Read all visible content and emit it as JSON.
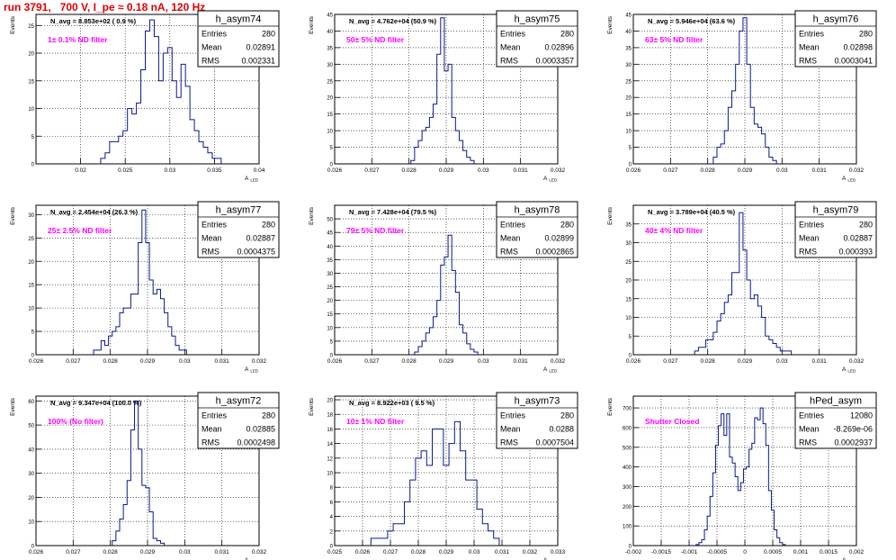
{
  "page": {
    "title": "run 3791,   700 V, I_pe ≈ 0.18 nA, 120 Hz"
  },
  "style": {
    "line_color": "#0a1a8c",
    "label_color": "#ff00ff",
    "title_color": "#e00000",
    "grid": true
  },
  "chart_data": [
    {
      "type": "histogram",
      "name": "h_asym74",
      "nlabel": "N_avg = 8.853e+02 ( 0.9 %)",
      "filter_label": "1± 0.1% ND filter",
      "stats": {
        "entries": "280",
        "mean": "0.02891",
        "rms": "0.002331"
      },
      "stats_labels": [
        "Entries",
        "Mean",
        "RMS"
      ],
      "ylabel": "Events",
      "xlabel": "A",
      "xsub": "LED",
      "xlim": [
        0.015,
        0.04
      ],
      "ylim": [
        0,
        27
      ],
      "xticks": [
        "0.02",
        "0.025",
        "0.03",
        "0.035",
        "0.04"
      ],
      "xtick_vals": [
        0.02,
        0.025,
        0.03,
        0.035,
        0.04
      ],
      "yticks": [
        0,
        5,
        10,
        15,
        20,
        25
      ],
      "bin_width": 0.0005,
      "x": [
        0.0225,
        0.023,
        0.0235,
        0.024,
        0.0245,
        0.025,
        0.0255,
        0.026,
        0.0265,
        0.027,
        0.0275,
        0.028,
        0.0285,
        0.029,
        0.0295,
        0.03,
        0.0305,
        0.031,
        0.0315,
        0.032,
        0.0325,
        0.033,
        0.0335,
        0.034,
        0.0345,
        0.035,
        0.0355
      ],
      "values": [
        1,
        2,
        4,
        4,
        5,
        6,
        10,
        9,
        11,
        17,
        24,
        26,
        23,
        15,
        20,
        21,
        15,
        12,
        18,
        14,
        8,
        6,
        4,
        3,
        2,
        1,
        1
      ]
    },
    {
      "type": "histogram",
      "name": "h_asym75",
      "nlabel": "N_avg = 4.762e+04 (50.9 %)",
      "filter_label": "50± 5% ND filter",
      "stats": {
        "entries": "280",
        "mean": "0.02896",
        "rms": "0.0003357"
      },
      "stats_labels": [
        "Entries",
        "Mean",
        "RMS"
      ],
      "ylabel": "Events",
      "xlabel": "A",
      "xsub": "LED",
      "xlim": [
        0.026,
        0.032
      ],
      "ylim": [
        0,
        45
      ],
      "xticks": [
        "0.026",
        "0.027",
        "0.028",
        "0.029",
        "0.03",
        "0.031",
        "0.032"
      ],
      "xtick_vals": [
        0.026,
        0.027,
        0.028,
        0.029,
        0.03,
        0.031,
        0.032
      ],
      "yticks": [
        0,
        5,
        10,
        15,
        20,
        25,
        30,
        35,
        40,
        45
      ],
      "bin_width": 0.0001,
      "x": [
        0.0281,
        0.0282,
        0.0283,
        0.0284,
        0.0285,
        0.0286,
        0.0287,
        0.0288,
        0.0289,
        0.029,
        0.0291,
        0.0292,
        0.0293,
        0.0294,
        0.0295,
        0.0296,
        0.0297
      ],
      "values": [
        1,
        5,
        7,
        10,
        11,
        14,
        18,
        33,
        44,
        28,
        30,
        14,
        10,
        7,
        4,
        2,
        1
      ]
    },
    {
      "type": "histogram",
      "name": "h_asym76",
      "nlabel": "N_avg = 5.946e+04 (63.6 %)",
      "filter_label": "63± 5% ND filter",
      "stats": {
        "entries": "280",
        "mean": "0.02898",
        "rms": "0.0003041"
      },
      "stats_labels": [
        "Entries",
        "Mean",
        "RMS"
      ],
      "ylabel": "Events",
      "xlabel": "A",
      "xsub": "LED",
      "xlim": [
        0.026,
        0.032
      ],
      "ylim": [
        0,
        45
      ],
      "xticks": [
        "0.026",
        "0.027",
        "0.028",
        "0.029",
        "0.03",
        "0.031",
        "0.032"
      ],
      "xtick_vals": [
        0.026,
        0.027,
        0.028,
        0.029,
        0.03,
        0.031,
        0.032
      ],
      "yticks": [
        0,
        5,
        10,
        15,
        20,
        25,
        30,
        35,
        40,
        45
      ],
      "bin_width": 0.0001,
      "x": [
        0.0282,
        0.0283,
        0.0284,
        0.0285,
        0.0286,
        0.0287,
        0.0288,
        0.0289,
        0.029,
        0.0291,
        0.0292,
        0.0293,
        0.0294,
        0.0295,
        0.0296,
        0.0297,
        0.0298
      ],
      "values": [
        2,
        5,
        6,
        10,
        17,
        22,
        30,
        40,
        44,
        30,
        17,
        12,
        11,
        9,
        5,
        2,
        1
      ]
    },
    {
      "type": "histogram",
      "name": "h_asym77",
      "nlabel": "N_avg = 2.454e+04 (26.3 %)",
      "filter_label": "25± 2.5% ND filter",
      "stats": {
        "entries": "280",
        "mean": "0.02887",
        "rms": "0.0004375"
      },
      "stats_labels": [
        "Entries",
        "Mean",
        "RMS"
      ],
      "ylabel": "Events",
      "xlabel": "A",
      "xsub": "LED",
      "xlim": [
        0.026,
        0.032
      ],
      "ylim": [
        0,
        32
      ],
      "xticks": [
        "0.026",
        "0.027",
        "0.028",
        "0.029",
        "0.03",
        "0.031",
        "0.032"
      ],
      "xtick_vals": [
        0.026,
        0.027,
        0.028,
        0.029,
        0.03,
        0.031,
        0.032
      ],
      "yticks": [
        0,
        5,
        10,
        15,
        20,
        25,
        30
      ],
      "bin_width": 0.0001,
      "x": [
        0.0276,
        0.0277,
        0.0278,
        0.0279,
        0.028,
        0.0281,
        0.0282,
        0.0283,
        0.0284,
        0.0285,
        0.0286,
        0.0287,
        0.0288,
        0.0289,
        0.029,
        0.0291,
        0.0292,
        0.0293,
        0.0294,
        0.0295,
        0.0296,
        0.0297,
        0.0298,
        0.0299,
        0.03
      ],
      "values": [
        1,
        1,
        3,
        2,
        4,
        5,
        6,
        9,
        10,
        10,
        13,
        13,
        24,
        31,
        24,
        16,
        13,
        14,
        12,
        9,
        6,
        4,
        2,
        1,
        1
      ]
    },
    {
      "type": "histogram",
      "name": "h_asym78",
      "nlabel": "N_avg = 7.428e+04 (79.5 %)",
      "filter_label": "79± 5% ND filter",
      "stats": {
        "entries": "280",
        "mean": "0.02899",
        "rms": "0.0002865"
      },
      "stats_labels": [
        "Entries",
        "Mean",
        "RMS"
      ],
      "ylabel": "Events",
      "xlabel": "A",
      "xsub": "LED",
      "xlim": [
        0.026,
        0.032
      ],
      "ylim": [
        0,
        55
      ],
      "xticks": [
        "0.026",
        "0.027",
        "0.028",
        "0.029",
        "0.03",
        "0.031",
        "0.032"
      ],
      "xtick_vals": [
        0.026,
        0.027,
        0.028,
        0.029,
        0.03,
        0.031,
        0.032
      ],
      "yticks": [
        0,
        5,
        10,
        15,
        20,
        25,
        30,
        35,
        40,
        45,
        50
      ],
      "bin_width": 0.0001,
      "x": [
        0.0282,
        0.0283,
        0.0284,
        0.0285,
        0.0286,
        0.0287,
        0.0288,
        0.0289,
        0.029,
        0.0291,
        0.0292,
        0.0293,
        0.0294,
        0.0295,
        0.0296,
        0.0297,
        0.0298
      ],
      "values": [
        1,
        3,
        5,
        8,
        10,
        14,
        20,
        33,
        36,
        44,
        31,
        23,
        11,
        8,
        4,
        2,
        1
      ]
    },
    {
      "type": "histogram",
      "name": "h_asym79",
      "nlabel": "N_avg = 3.789e+04 (40.5 %)",
      "filter_label": "40± 4% ND filter",
      "stats": {
        "entries": "280",
        "mean": "0.02887",
        "rms": "0.000393"
      },
      "stats_labels": [
        "Entries",
        "Mean",
        "RMS"
      ],
      "ylabel": "Events",
      "xlabel": "A",
      "xsub": "LED",
      "xlim": [
        0.026,
        0.032
      ],
      "ylim": [
        0,
        40
      ],
      "xticks": [
        "0.026",
        "0.027",
        "0.028",
        "0.029",
        "0.03",
        "0.031",
        "0.032"
      ],
      "xtick_vals": [
        0.026,
        0.027,
        0.028,
        0.029,
        0.03,
        0.031,
        0.032
      ],
      "yticks": [
        0,
        5,
        10,
        15,
        20,
        25,
        30,
        35
      ],
      "bin_width": 0.0001,
      "x": [
        0.0277,
        0.0278,
        0.0279,
        0.028,
        0.0281,
        0.0282,
        0.0283,
        0.0284,
        0.0285,
        0.0286,
        0.0287,
        0.0288,
        0.0289,
        0.029,
        0.0291,
        0.0292,
        0.0293,
        0.0294,
        0.0295,
        0.0296,
        0.0297,
        0.0298,
        0.0299,
        0.03,
        0.0301,
        0.0302
      ],
      "values": [
        1,
        2,
        2,
        4,
        4,
        6,
        9,
        11,
        14,
        16,
        22,
        22,
        38,
        28,
        20,
        15,
        16,
        13,
        10,
        5,
        4,
        3,
        2,
        1,
        1,
        1
      ]
    },
    {
      "type": "histogram",
      "name": "h_asym72",
      "nlabel": "N_avg = 9.347e+04 (100.0 %)",
      "filter_label": "100% (No filter)",
      "stats": {
        "entries": "280",
        "mean": "0.02885",
        "rms": "0.0002498"
      },
      "stats_labels": [
        "Entries",
        "Mean",
        "RMS"
      ],
      "ylabel": "Events",
      "xlabel": "A",
      "xsub": "LED",
      "xlim": [
        0.026,
        0.032
      ],
      "ylim": [
        0,
        62
      ],
      "xticks": [
        "0.026",
        "0.027",
        "0.028",
        "0.029",
        "0.03",
        "0.031",
        "0.032"
      ],
      "xtick_vals": [
        0.026,
        0.027,
        0.028,
        0.029,
        0.03,
        0.031,
        0.032
      ],
      "yticks": [
        0,
        10,
        20,
        30,
        40,
        50,
        60
      ],
      "bin_width": 0.0001,
      "x": [
        0.0281,
        0.0282,
        0.0283,
        0.0284,
        0.0285,
        0.0286,
        0.0287,
        0.0288,
        0.0289,
        0.029,
        0.0291,
        0.0292,
        0.0293,
        0.0294
      ],
      "values": [
        2,
        6,
        11,
        17,
        27,
        48,
        60,
        40,
        25,
        24,
        14,
        3,
        2,
        1
      ]
    },
    {
      "type": "histogram",
      "name": "h_asym73",
      "nlabel": "N_avg = 8.922e+03 ( 9.5 %)",
      "filter_label": "10± 1% ND filter",
      "stats": {
        "entries": "280",
        "mean": "0.0288",
        "rms": "0.0007504"
      },
      "stats_labels": [
        "Entries",
        "Mean",
        "RMS"
      ],
      "ylabel": "Events",
      "xlabel": "A",
      "xsub": "LED",
      "xlim": [
        0.025,
        0.033
      ],
      "ylim": [
        0,
        20.5
      ],
      "xticks": [
        "0.025",
        "0.026",
        "0.027",
        "0.028",
        "0.029",
        "0.03",
        "0.031",
        "0.032",
        "0.033"
      ],
      "xtick_vals": [
        0.025,
        0.026,
        0.027,
        0.028,
        0.029,
        0.03,
        0.031,
        0.032,
        0.033
      ],
      "yticks": [
        0,
        2,
        4,
        6,
        8,
        10,
        12,
        14,
        16,
        18,
        20
      ],
      "bin_width": 0.0002,
      "x": [
        0.0264,
        0.0266,
        0.0268,
        0.027,
        0.0272,
        0.0274,
        0.0276,
        0.0278,
        0.028,
        0.0282,
        0.0284,
        0.0286,
        0.0288,
        0.029,
        0.0292,
        0.0294,
        0.0296,
        0.0298,
        0.03,
        0.0302,
        0.0304,
        0.0306,
        0.0308
      ],
      "values": [
        1,
        1,
        1,
        2,
        3,
        3,
        6,
        9,
        12,
        13,
        11,
        16,
        16,
        11,
        14,
        17,
        13,
        9,
        9,
        5,
        3,
        2,
        1
      ]
    },
    {
      "type": "histogram",
      "name": "hPed_asym",
      "nlabel": "",
      "filter_label": "Shutter Closed",
      "stats": {
        "entries": "12080",
        "mean": "-8.269e-06",
        "rms": "0.0002937"
      },
      "stats_labels": [
        "Entries",
        "Mean",
        "RMS"
      ],
      "ylabel": "Events",
      "xlabel": "A",
      "xsub": "LED",
      "xlim": [
        -0.002,
        0.002
      ],
      "ylim": [
        0,
        760
      ],
      "xticks": [
        "-0.002",
        "-0.0015",
        "-0.001",
        "-0.0005",
        "0",
        "0.0005",
        "0.001",
        "0.0015",
        "0.002"
      ],
      "xtick_vals": [
        -0.002,
        -0.0015,
        -0.001,
        -0.0005,
        0,
        0.0005,
        0.001,
        0.0015,
        0.002
      ],
      "yticks": [
        0,
        100,
        200,
        300,
        400,
        500,
        600,
        700
      ],
      "bin_width": 5e-05,
      "x": [
        -0.00085,
        -0.0008,
        -0.00075,
        -0.0007,
        -0.00065,
        -0.0006,
        -0.00055,
        -0.0005,
        -0.00045,
        -0.0004,
        -0.00035,
        -0.0003,
        -0.00025,
        -0.0002,
        -0.00015,
        -0.0001,
        -5e-05,
        0,
        5e-05,
        0.0001,
        0.00015,
        0.0002,
        0.00025,
        0.0003,
        0.00035,
        0.0004,
        0.00045,
        0.0005,
        0.00055,
        0.0006,
        0.00065,
        0.0007
      ],
      "values": [
        5,
        15,
        30,
        80,
        150,
        250,
        370,
        510,
        610,
        670,
        560,
        670,
        450,
        420,
        350,
        280,
        320,
        390,
        400,
        490,
        520,
        650,
        640,
        700,
        620,
        510,
        280,
        180,
        80,
        40,
        15,
        5
      ]
    }
  ]
}
